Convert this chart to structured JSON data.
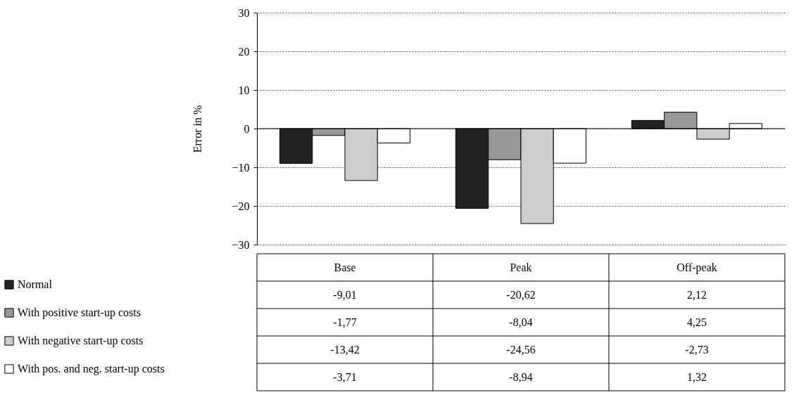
{
  "chart_data": {
    "type": "bar",
    "ylabel": "Error in %",
    "categories": [
      "Base",
      "Peak",
      "Off-peak"
    ],
    "ylim": [
      -30,
      30
    ],
    "yticks": [
      -30,
      -20,
      -10,
      0,
      10,
      20,
      30
    ],
    "grid": "y",
    "legend": "bottom left",
    "ref_lines": [
      {
        "axis": "y",
        "value": 0
      }
    ],
    "series": [
      {
        "name": "Normal",
        "color": "#222222",
        "values": [
          -9.01,
          -20.62,
          2.12
        ],
        "value_labels": [
          "-9,01",
          "-20,62",
          "2,12"
        ]
      },
      {
        "name": "With positive start-up costs",
        "color": "#999999",
        "values": [
          -1.77,
          -8.04,
          4.25
        ],
        "value_labels": [
          "-1,77",
          "-8,04",
          "4,25"
        ]
      },
      {
        "name": "With negative start-up costs",
        "color": "#cccccc",
        "values": [
          -13.42,
          -24.56,
          -2.73
        ],
        "value_labels": [
          "-13,42",
          "-24,56",
          "-2,73"
        ]
      },
      {
        "name": "With pos. and neg. start-up costs",
        "color": "#ffffff",
        "values": [
          -3.71,
          -8.94,
          1.32
        ],
        "value_labels": [
          "-3,71",
          "-8,94",
          "1,32"
        ]
      }
    ]
  }
}
